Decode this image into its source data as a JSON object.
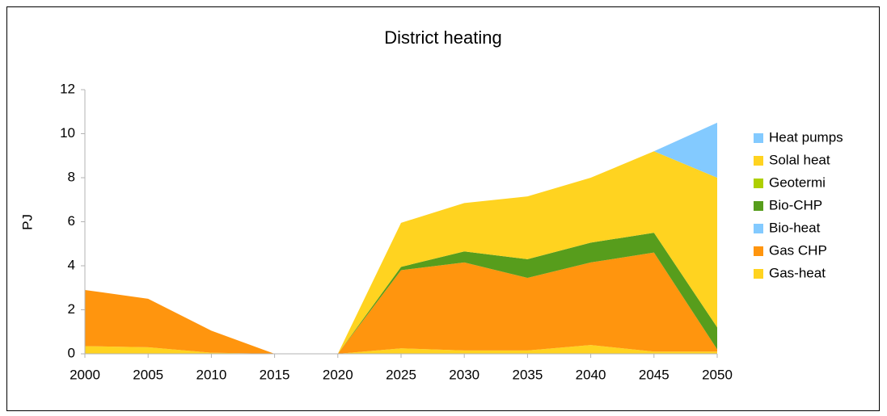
{
  "chart_data": {
    "type": "stacked_area",
    "title": "District heating",
    "y_label": "PJ",
    "x": [
      2000,
      2005,
      2010,
      2015,
      2020,
      2025,
      2030,
      2035,
      2040,
      2045,
      2050
    ],
    "xlim": [
      2000,
      2050
    ],
    "xticks": [
      2000,
      2005,
      2010,
      2015,
      2020,
      2025,
      2030,
      2035,
      2040,
      2045,
      2050
    ],
    "ylim": [
      0,
      12
    ],
    "yticks": [
      0,
      2,
      4,
      6,
      8,
      10,
      12
    ],
    "grid": false,
    "legend": "right",
    "series": [
      {
        "name": "Gas-heat",
        "color": "#ffd320",
        "values": [
          0.35,
          0.3,
          0.05,
          0,
          0,
          0.25,
          0.15,
          0.15,
          0.4,
          0.1,
          0.1
        ]
      },
      {
        "name": "Gas CHP",
        "color": "#ff950e",
        "values": [
          2.55,
          2.2,
          1.0,
          0,
          0,
          3.55,
          4.0,
          3.3,
          3.75,
          4.5,
          0.1
        ]
      },
      {
        "name": "Bio-heat",
        "color": "#83caff",
        "values": [
          0,
          0,
          0,
          0,
          0,
          0,
          0,
          0,
          0,
          0,
          0
        ]
      },
      {
        "name": "Bio-CHP",
        "color": "#579d1c",
        "values": [
          0,
          0,
          0,
          0,
          0,
          0.15,
          0.5,
          0.85,
          0.9,
          0.9,
          1.0
        ]
      },
      {
        "name": "Geotermi",
        "color": "#aecf00",
        "values": [
          0,
          0,
          0,
          0,
          0,
          0,
          0,
          0,
          0,
          0,
          0
        ]
      },
      {
        "name": "Solal heat",
        "color": "#ffd320",
        "values": [
          0,
          0,
          0,
          0,
          0,
          2.0,
          2.2,
          2.85,
          2.95,
          3.7,
          6.8
        ]
      },
      {
        "name": "Heat pumps",
        "color": "#83caff",
        "values": [
          0,
          0,
          0,
          0,
          0,
          0,
          0,
          0,
          0,
          0,
          2.5
        ]
      }
    ]
  }
}
